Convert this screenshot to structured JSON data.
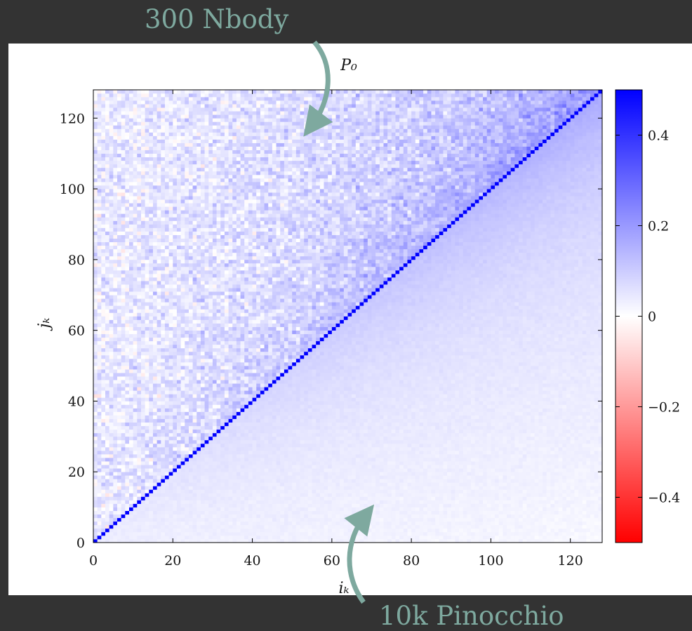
{
  "annotations": {
    "top": "300 Nbody",
    "bottom": "10k Pinocchio",
    "color": "#7ea99f"
  },
  "chart_data": {
    "type": "heatmap",
    "title": "P₀",
    "xlabel": "iₖ",
    "ylabel": "jₖ",
    "xlim": [
      0,
      128
    ],
    "ylim": [
      0,
      128
    ],
    "n": 128,
    "x_ticks": [
      0,
      20,
      40,
      60,
      80,
      100,
      120
    ],
    "y_ticks": [
      0,
      20,
      40,
      60,
      80,
      100,
      120
    ],
    "diagonal_value": 0.5,
    "upper_triangle": {
      "source": "300 Nbody",
      "description_values": "noisy correlation, mean ≈ 0.05 rising to ≈ 0.15 near diagonal at high k, noise σ ≈ 0.08"
    },
    "lower_triangle": {
      "source": "10k Pinocchio",
      "description_values": "smooth correlation ≈ 0.04 at low k rising to ≈ 0.15 near diagonal at high k"
    },
    "colorbar": {
      "range": [
        -0.5,
        0.5
      ],
      "ticks": [
        0.4,
        0.2,
        0,
        -0.2,
        -0.4
      ],
      "tick_labels": [
        "0.4",
        "0.2",
        "0",
        "−0.2",
        "−0.4"
      ],
      "colors": {
        "low": "#ff0000",
        "mid": "#ffffff",
        "high": "#0000ff"
      }
    },
    "grid": false
  }
}
